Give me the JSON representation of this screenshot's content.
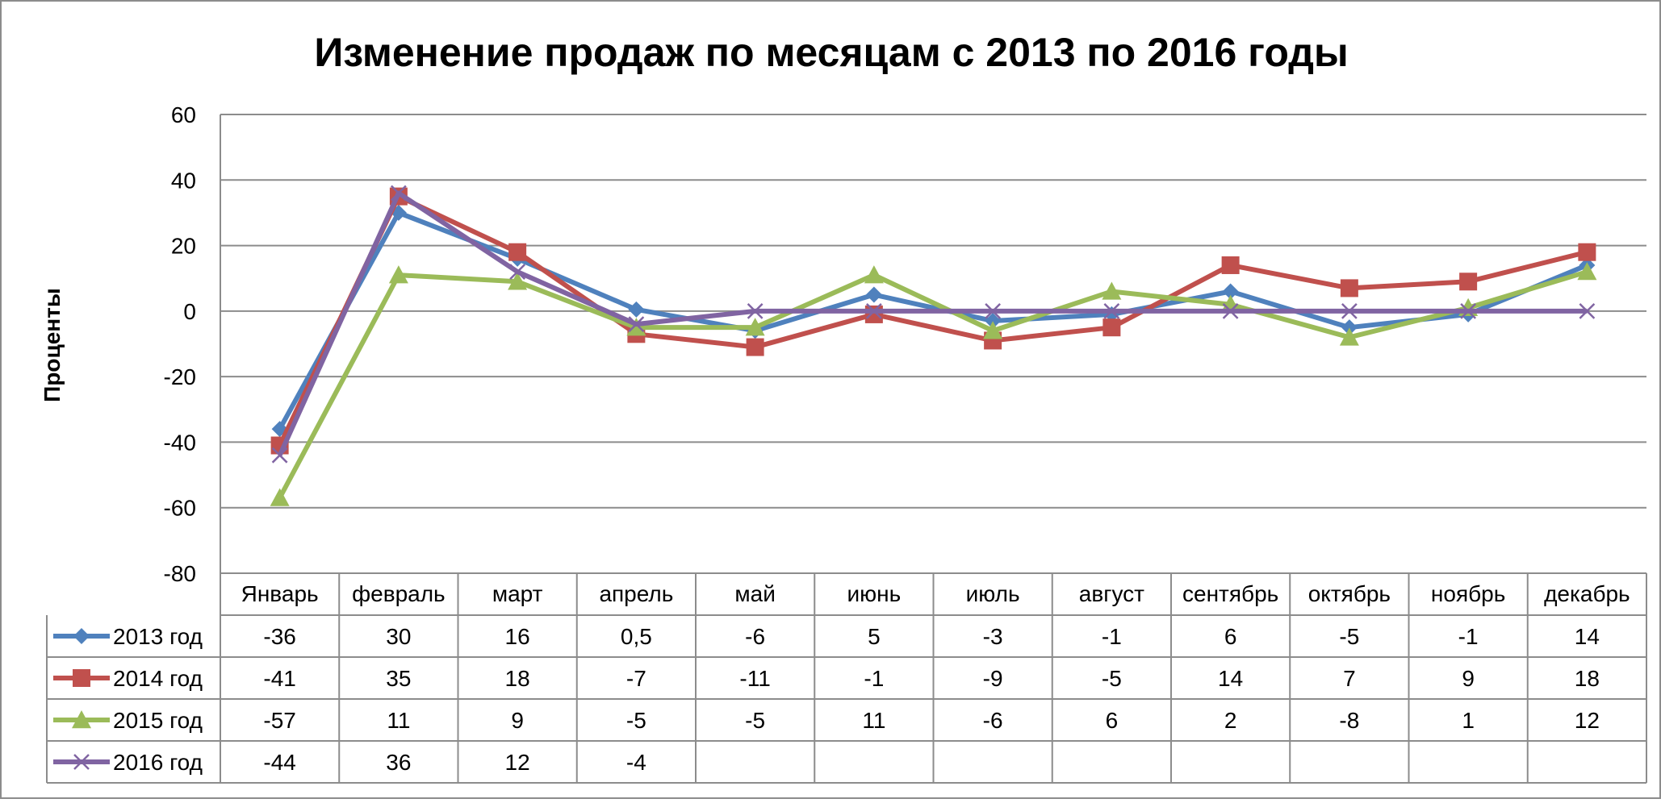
{
  "chart_data": {
    "type": "line",
    "title": "Изменение продаж по месяцам с 2013 по 2016 годы",
    "xlabel": "",
    "ylabel": "Проценты",
    "ylim": [
      -80,
      60
    ],
    "yticks": [
      "60",
      "40",
      "20",
      "0",
      "-20",
      "-40",
      "-60",
      "-80"
    ],
    "grid": true,
    "legend": "data-table",
    "categories": [
      "Январь",
      "февраль",
      "март",
      "апрель",
      "май",
      "июнь",
      "июль",
      "август",
      "сентябрь",
      "октябрь",
      "ноябрь",
      "декабрь"
    ],
    "series": [
      {
        "name": "2013 год",
        "color": "#4F81BD",
        "marker": "diamond",
        "values": [
          -36,
          30,
          16,
          0.5,
          -6,
          5,
          -3,
          -1,
          6,
          -5,
          -1,
          14
        ],
        "labels": [
          "-36",
          "30",
          "16",
          "0,5",
          "-6",
          "5",
          "-3",
          "-1",
          "6",
          "-5",
          "-1",
          "14"
        ]
      },
      {
        "name": "2014 год",
        "color": "#C0504D",
        "marker": "square",
        "values": [
          -41,
          35,
          18,
          -7,
          -11,
          -1,
          -9,
          -5,
          14,
          7,
          9,
          18
        ],
        "labels": [
          "-41",
          "35",
          "18",
          "-7",
          "-11",
          "-1",
          "-9",
          "-5",
          "14",
          "7",
          "9",
          "18"
        ]
      },
      {
        "name": "2015 год",
        "color": "#9BBB59",
        "marker": "triangle",
        "values": [
          -57,
          11,
          9,
          -5,
          -5,
          11,
          -6,
          6,
          2,
          -8,
          1,
          12
        ],
        "labels": [
          "-57",
          "11",
          "9",
          "-5",
          "-5",
          "11",
          "-6",
          "6",
          "2",
          "-8",
          "1",
          "12"
        ]
      },
      {
        "name": "2016 год",
        "color": "#8064A2",
        "marker": "x",
        "values": [
          -44,
          36,
          12,
          -4,
          0,
          0,
          0,
          0,
          0,
          0,
          0,
          0
        ],
        "labels": [
          "-44",
          "36",
          "12",
          "-4",
          "",
          "",
          "",
          "",
          "",
          "",
          "",
          ""
        ]
      }
    ]
  }
}
